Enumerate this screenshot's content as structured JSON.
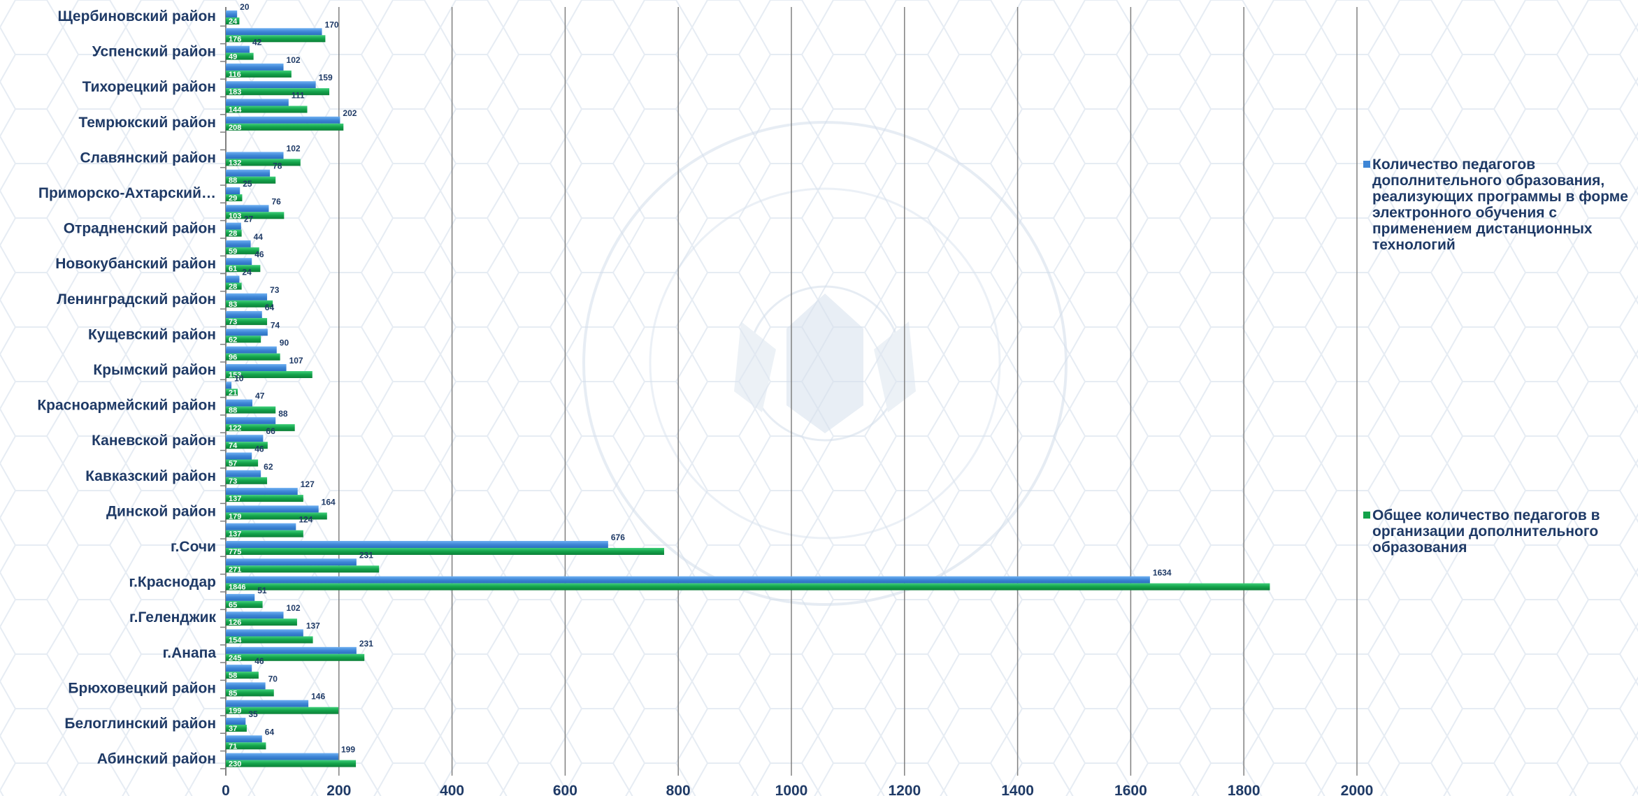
{
  "chart_data": {
    "type": "bar",
    "orientation": "horizontal",
    "categories": [
      "Щербиновский район",
      "",
      "Успенский район",
      "",
      "Тихорецкий район",
      "",
      "Темрюкский район",
      "",
      "Славянский район",
      "",
      "Приморско-Ахтарский…",
      "",
      "Отрадненский район",
      "",
      "Новокубанский район",
      "",
      "Ленинградский район",
      "",
      "Кущевский район",
      "",
      "Крымский район",
      "",
      "Красноармейский район",
      "",
      "Каневской район",
      "",
      "Кавказский район",
      "",
      "Динской район",
      "",
      "г.Сочи",
      "",
      "г.Краснодар",
      "",
      "г.Геленджик",
      "",
      "г.Анапа",
      "",
      "Брюховецкий район",
      "",
      "Белоглинский район",
      "",
      "Абинский район"
    ],
    "series": [
      {
        "name": "Количество педагогов дополнительного образования, реализующих программы в форме электронного обучения с применением дистанционных технологий",
        "color": "#3e86d6",
        "values": [
          20,
          170,
          42,
          102,
          159,
          111,
          202,
          null,
          102,
          78,
          25,
          76,
          27,
          44,
          46,
          24,
          73,
          64,
          74,
          90,
          107,
          10,
          47,
          88,
          66,
          46,
          62,
          127,
          164,
          124,
          676,
          231,
          1634,
          51,
          102,
          137,
          231,
          46,
          70,
          146,
          35,
          64,
          199
        ]
      },
      {
        "name": "Общее количество педагогов в организации дополнительного образования",
        "color": "#13a24a",
        "values": [
          24,
          176,
          49,
          116,
          183,
          144,
          208,
          null,
          132,
          88,
          29,
          103,
          28,
          59,
          61,
          28,
          83,
          73,
          62,
          96,
          153,
          21,
          88,
          122,
          74,
          57,
          73,
          137,
          179,
          137,
          775,
          271,
          1846,
          65,
          126,
          154,
          245,
          58,
          85,
          199,
          37,
          71,
          230
        ]
      }
    ],
    "xlim": [
      0,
      2000
    ],
    "xticks": [
      0,
      200,
      400,
      600,
      800,
      1000,
      1200,
      1400,
      1600,
      1800,
      2000
    ],
    "grid": "vertical",
    "legend": "right",
    "title": "",
    "xlabel": "",
    "ylabel": ""
  },
  "legend": {
    "items": [
      {
        "text": "Количество педагогов дополнительного образования, реализующих программы в форме электронного обучения с применением дистанционных технологий",
        "color": "#3e86d6"
      },
      {
        "text": "Общее количество педагогов в организации дополнительного образования",
        "color": "#13a24a"
      }
    ]
  },
  "colors": {
    "axis": "#808080",
    "grid": "#808080",
    "label_text": "#1f3a66",
    "watermark": "#c9d6e6"
  }
}
